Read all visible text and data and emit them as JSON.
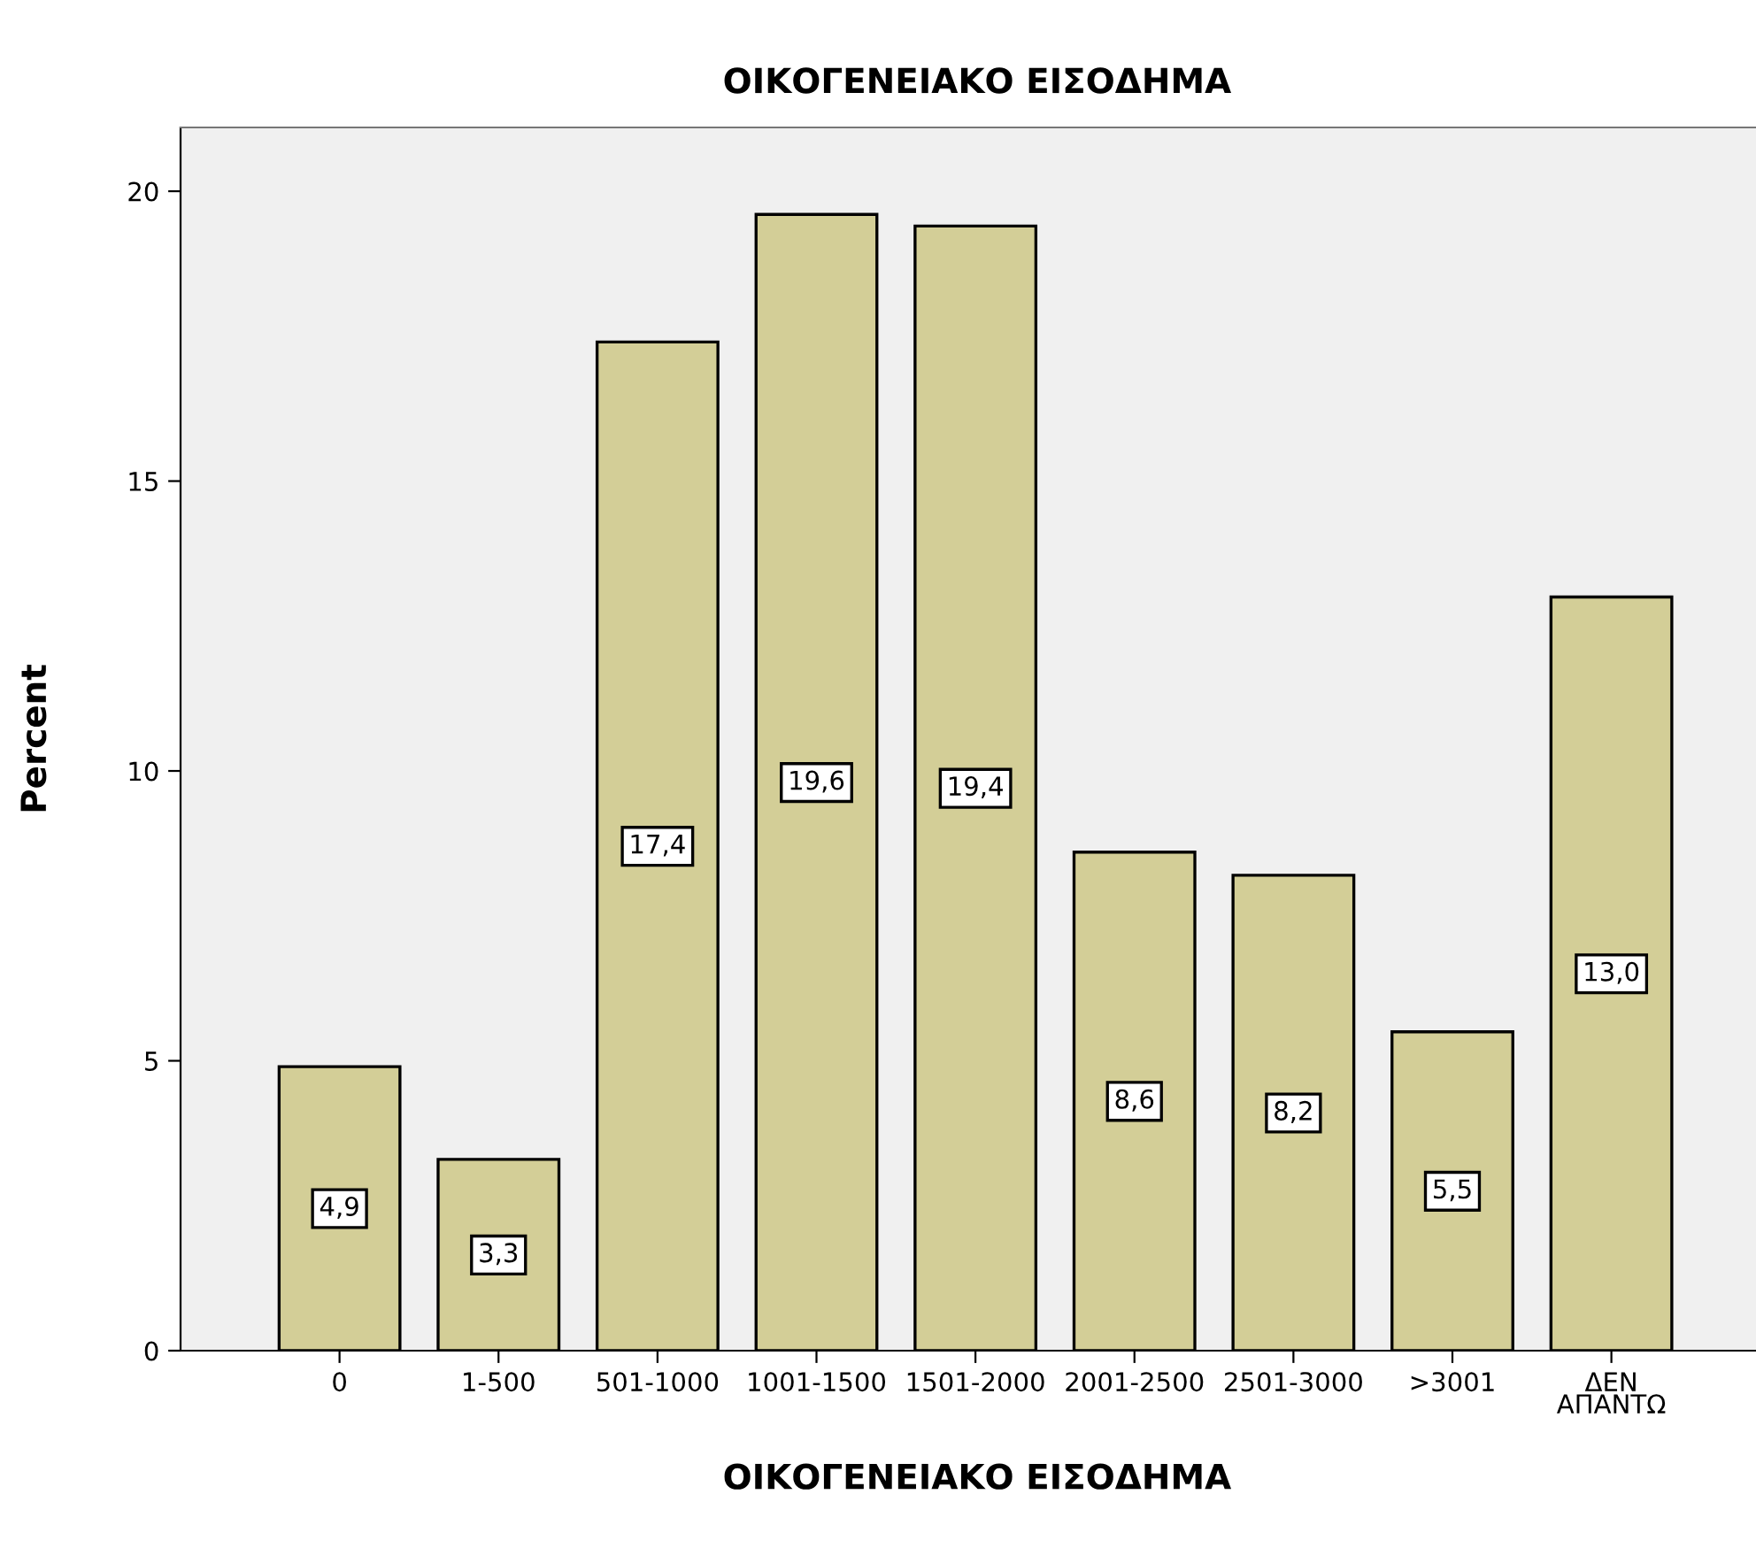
{
  "chart_data": {
    "type": "bar",
    "title": "ΟΙΚΟΓΕΝΕΙΑΚΟ ΕΙΣΟΔΗΜΑ",
    "xlabel": "ΟΙΚΟΓΕΝΕΙΑΚΟ ΕΙΣΟΔΗΜΑ",
    "ylabel": "Percent",
    "categories": [
      "0",
      "1-500",
      "501-1000",
      "1001-1500",
      "1501-2000",
      "2001-2500",
      "2501-3000",
      ">3001",
      "ΔΕΝ\nΑΠΑΝΤΩ"
    ],
    "values": [
      4.9,
      3.3,
      17.4,
      19.6,
      19.4,
      8.6,
      8.2,
      5.5,
      13.0
    ],
    "value_labels": [
      "4,9",
      "3,3",
      "17,4",
      "19,6",
      "19,4",
      "8,6",
      "8,2",
      "5,5",
      "13,0"
    ],
    "color": "#d3ce97",
    "ylim": [
      0,
      21.1
    ],
    "yticks": [
      0,
      5,
      10,
      15,
      20
    ],
    "grid": false,
    "legend": false
  }
}
